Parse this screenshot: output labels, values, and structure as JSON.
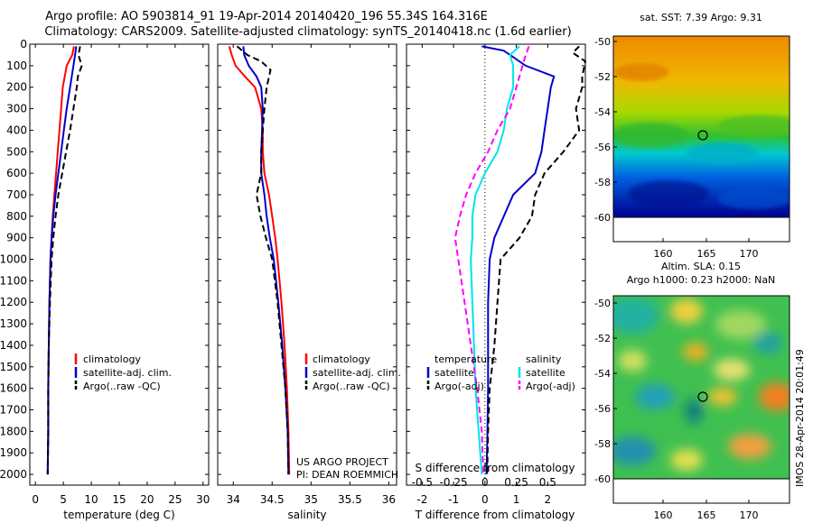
{
  "header": {
    "title1": "Argo profile: AO 5903814_91 19-Apr-2014 20140420_196 55.34S 164.316E",
    "title2": "Climatology: CARS2009. Satellite-adjusted climatology: synTS_20140418.nc (1.6d earlier)"
  },
  "depth_ticks": [
    "0",
    "100",
    "200",
    "300",
    "400",
    "500",
    "600",
    "700",
    "800",
    "900",
    "1000",
    "1100",
    "1200",
    "1300",
    "1400",
    "1500",
    "1600",
    "1700",
    "1800",
    "1900",
    "2000"
  ],
  "colors": {
    "climatology": "#ff0000",
    "satellite": "#0000cc",
    "argo": "#000000",
    "salinity_sat": "#00e5e5",
    "salinity_argo": "#ff00ff"
  },
  "chart_data": [
    {
      "type": "line",
      "panel": "temperature",
      "xlabel": "temperature (deg C)",
      "xlim": [
        -1,
        31
      ],
      "xticks": [
        "0",
        "5",
        "10",
        "15",
        "20",
        "25",
        "30"
      ],
      "ylim": [
        2050,
        0
      ],
      "legend": [
        "climatology",
        "satellite-adj. clim.",
        "Argo(..raw -QC)"
      ],
      "series": [
        {
          "name": "climatology",
          "depth": [
            10,
            50,
            100,
            200,
            300,
            400,
            500,
            600,
            700,
            800,
            900,
            1000,
            1200,
            1400,
            1600,
            1800,
            2000
          ],
          "values": [
            6.9,
            6.6,
            5.6,
            4.9,
            4.6,
            4.3,
            4.0,
            3.7,
            3.4,
            3.1,
            2.9,
            2.7,
            2.5,
            2.4,
            2.3,
            2.3,
            2.2
          ]
        },
        {
          "name": "satellite-adj. clim.",
          "depth": [
            10,
            50,
            100,
            200,
            300,
            400,
            500,
            600,
            700,
            800,
            900,
            1000,
            1200,
            1400,
            1600,
            1800,
            2000
          ],
          "values": [
            7.3,
            7.1,
            6.8,
            6.2,
            5.6,
            5.1,
            4.6,
            4.1,
            3.6,
            3.2,
            2.9,
            2.7,
            2.5,
            2.4,
            2.3,
            2.3,
            2.2
          ]
        },
        {
          "name": "Argo(..raw -QC)",
          "depth": [
            10,
            50,
            100,
            150,
            200,
            300,
            400,
            500,
            600,
            700,
            800,
            900,
            1000,
            1200,
            1400,
            1600,
            1800,
            2000
          ],
          "values": [
            8.0,
            7.7,
            8.3,
            7.6,
            7.4,
            6.8,
            6.2,
            5.5,
            4.8,
            4.1,
            3.6,
            3.2,
            2.9,
            2.6,
            2.4,
            2.3,
            2.3,
            2.2
          ]
        }
      ]
    },
    {
      "type": "line",
      "panel": "salinity",
      "xlabel": "salinity",
      "xlim": [
        33.8,
        36.1
      ],
      "xticks": [
        "34",
        "34.5",
        "35",
        "35.5",
        "36"
      ],
      "ylim": [
        2050,
        0
      ],
      "legend": [
        "climatology",
        "satellite-adj. clim.",
        "Argo(..raw -QC)"
      ],
      "annotation": [
        "US ARGO PROJECT",
        "PI: DEAN ROEMMICH"
      ],
      "series": [
        {
          "name": "climatology",
          "depth": [
            10,
            50,
            100,
            150,
            200,
            300,
            400,
            500,
            600,
            700,
            800,
            900,
            1000,
            1200,
            1400,
            1600,
            1800,
            2000
          ],
          "values": [
            33.95,
            33.98,
            34.03,
            34.15,
            34.28,
            34.36,
            34.38,
            34.38,
            34.4,
            34.46,
            34.5,
            34.54,
            34.57,
            34.62,
            34.66,
            34.69,
            34.71,
            34.72
          ]
        },
        {
          "name": "satellite-adj. clim.",
          "depth": [
            10,
            50,
            100,
            150,
            200,
            300,
            400,
            500,
            600,
            700,
            800,
            900,
            1000,
            1200,
            1400,
            1600,
            1800,
            2000
          ],
          "values": [
            34.13,
            34.14,
            34.2,
            34.3,
            34.36,
            34.38,
            34.37,
            34.36,
            34.36,
            34.4,
            34.43,
            34.47,
            34.52,
            34.58,
            34.63,
            34.67,
            34.7,
            34.71
          ]
        },
        {
          "name": "Argo(..raw -QC)",
          "depth": [
            10,
            50,
            80,
            120,
            200,
            300,
            400,
            500,
            600,
            700,
            800,
            900,
            1000,
            1200,
            1400,
            1600,
            1800,
            2000
          ],
          "values": [
            34.05,
            34.18,
            34.36,
            34.48,
            34.43,
            34.4,
            34.38,
            34.36,
            34.36,
            34.3,
            34.35,
            34.42,
            34.5,
            34.57,
            34.62,
            34.67,
            34.7,
            34.71
          ]
        }
      ]
    },
    {
      "type": "line",
      "panel": "difference",
      "xlabel": "T difference from climatology",
      "xlabel2": "S difference from climatology",
      "xlim": [
        -2.5,
        3.2
      ],
      "xticks": [
        "-2",
        "-1",
        "0",
        "1",
        "2"
      ],
      "xticks_s": [
        "-0.5",
        "-0.25",
        "0",
        "0.25",
        "0.5"
      ],
      "xticks_s_pos": [
        -2,
        -1,
        0,
        1,
        2
      ],
      "ylim": [
        2050,
        0
      ],
      "legend_left_header": "temperature",
      "legend_right_header": "salinity",
      "legend": [
        "satellite",
        "Argo(-adj)",
        "satellite",
        "Argo(-adj)"
      ],
      "series": [
        {
          "name": "satellite",
          "group": "temperature",
          "depth": [
            10,
            30,
            60,
            100,
            150,
            200,
            300,
            400,
            500,
            600,
            700,
            800,
            900,
            1000,
            1200,
            1400,
            1600,
            1800,
            2000
          ],
          "values": [
            -0.1,
            0.6,
            0.9,
            1.3,
            2.2,
            2.1,
            2.0,
            1.9,
            1.8,
            1.6,
            0.9,
            0.6,
            0.3,
            0.15,
            0.1,
            0.1,
            0.1,
            0.08,
            0.05
          ]
        },
        {
          "name": "Argo(-adj)",
          "group": "temperature",
          "depth": [
            10,
            40,
            80,
            150,
            200,
            300,
            400,
            500,
            600,
            700,
            800,
            900,
            1000,
            1200,
            1400,
            1600,
            1800,
            2000
          ],
          "values": [
            3.0,
            2.8,
            3.2,
            3.1,
            3.1,
            2.9,
            3.0,
            2.5,
            1.9,
            1.6,
            1.5,
            1.1,
            0.5,
            0.4,
            0.3,
            0.15,
            0.1,
            0.07
          ]
        },
        {
          "name": "satellite",
          "group": "salinity",
          "depth": [
            10,
            50,
            100,
            200,
            300,
            400,
            500,
            600,
            700,
            800,
            900,
            1000,
            1200,
            1400,
            1600,
            1800,
            2000
          ],
          "values": [
            1.1,
            0.8,
            0.9,
            0.9,
            0.7,
            0.6,
            0.4,
            0.0,
            -0.3,
            -0.4,
            -0.4,
            -0.45,
            -0.4,
            -0.35,
            -0.3,
            -0.2,
            -0.1
          ]
        },
        {
          "name": "Argo(-adj)",
          "group": "salinity",
          "depth": [
            10,
            50,
            100,
            200,
            300,
            400,
            500,
            600,
            700,
            800,
            900,
            1000,
            1200,
            1400,
            1600,
            1800,
            2000
          ],
          "values": [
            1.4,
            1.3,
            1.2,
            1.0,
            0.8,
            0.4,
            0.1,
            -0.3,
            -0.6,
            -0.8,
            -0.95,
            -0.85,
            -0.65,
            -0.45,
            -0.25,
            -0.1,
            -0.05
          ]
        }
      ]
    }
  ],
  "maps": {
    "sst": {
      "title": "sat. SST: 7.39 Argo: 9.31",
      "yticks": [
        "-50",
        "-52",
        "-54",
        "-56",
        "-58",
        "-60"
      ],
      "xticks": [
        "160",
        "165",
        "170"
      ]
    },
    "sla": {
      "title1": "Altim. SLA: 0.15",
      "title2": "Argo h1000: 0.23 h2000: NaN",
      "yticks": [
        "-50",
        "-52",
        "-54",
        "-56",
        "-58",
        "-60"
      ],
      "xticks": [
        "160",
        "165",
        "170"
      ]
    },
    "stamp": "IMOS 28-Apr-2014 20:01:49"
  }
}
